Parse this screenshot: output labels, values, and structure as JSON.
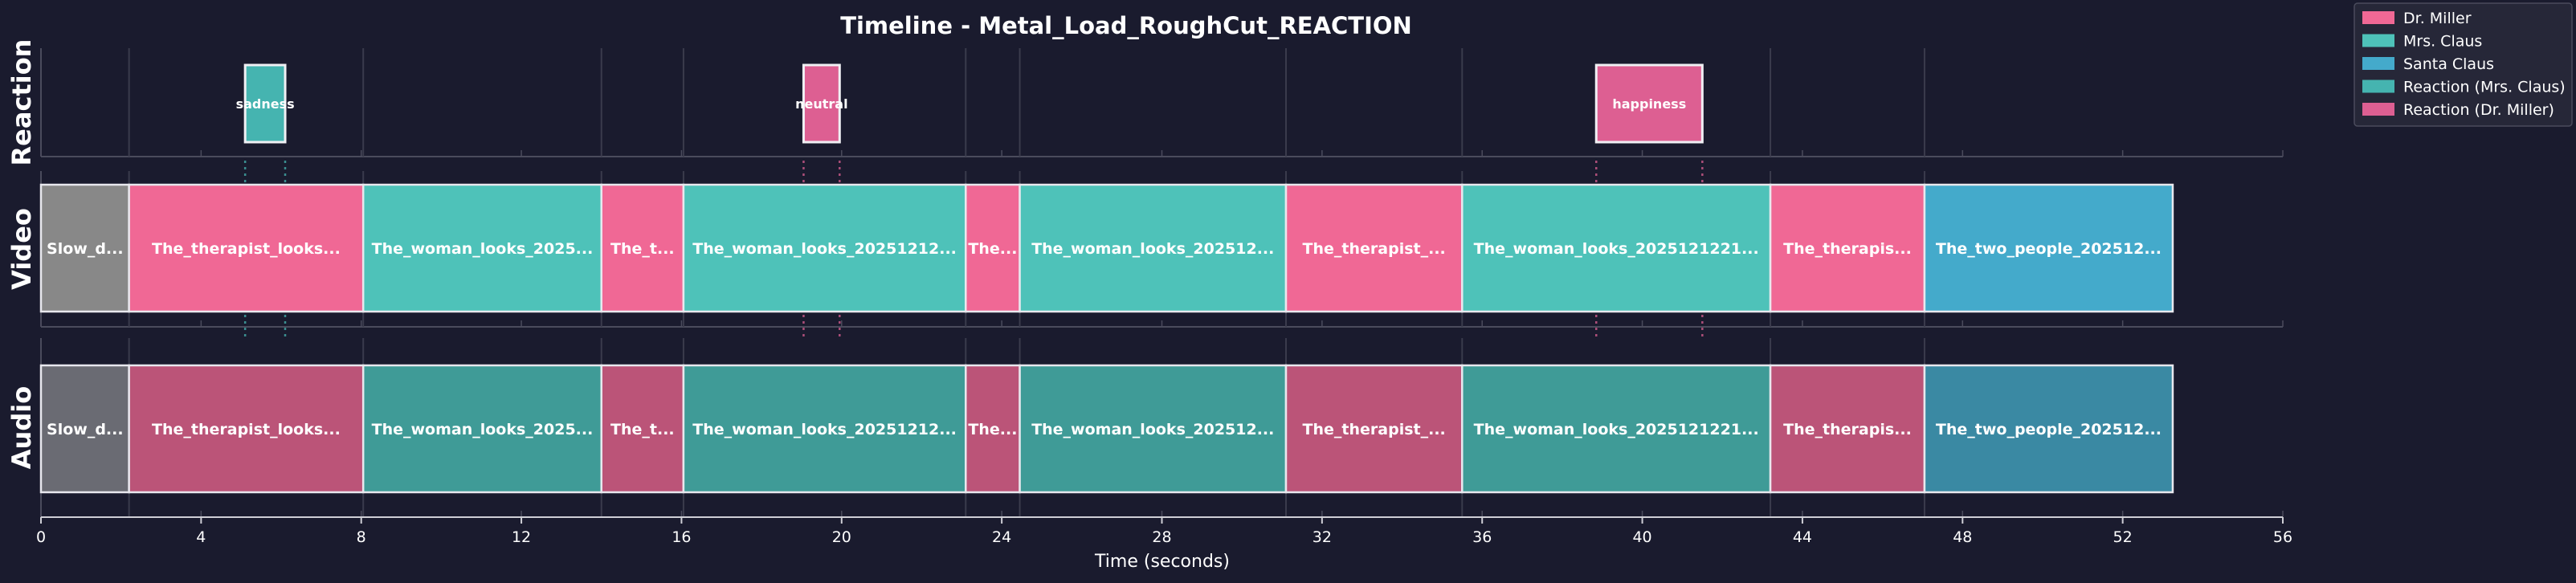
{
  "chart_data": {
    "type": "timeline",
    "title": "Timeline - Metal_Load_RoughCut_REACTION",
    "xlabel": "Time (seconds)",
    "xlim": [
      0,
      56
    ],
    "xticks": [
      0,
      4,
      8,
      12,
      16,
      20,
      24,
      28,
      32,
      36,
      40,
      44,
      48,
      52,
      56
    ],
    "tracks": [
      "Reaction",
      "Video",
      "Audio"
    ],
    "colors": {
      "Slow": "#888888",
      "Dr. Miller": "#f06895",
      "Mrs. Claus": "#4ec2b9",
      "Santa Claus": "#44aacb",
      "Reaction (Mrs. Claus)": "#45b4b0",
      "Reaction (Dr. Miller)": "#dd5f92"
    },
    "audio_colors": {
      "Slow": "#6a6b73",
      "Dr. Miller": "#bb5478",
      "Mrs. Claus": "#3f9b97",
      "Santa Claus": "#3a89a3"
    },
    "clips": [
      {
        "start": 0.0,
        "end": 2.2,
        "speaker": "Slow",
        "label": "Slow_d..."
      },
      {
        "start": 2.2,
        "end": 8.05,
        "speaker": "Dr. Miller",
        "label": "The_therapist_looks..."
      },
      {
        "start": 8.05,
        "end": 14.0,
        "speaker": "Mrs. Claus",
        "label": "The_woman_looks_2025..."
      },
      {
        "start": 14.0,
        "end": 16.05,
        "speaker": "Dr. Miller",
        "label": "The_t..."
      },
      {
        "start": 16.05,
        "end": 23.1,
        "speaker": "Mrs. Claus",
        "label": "The_woman_looks_20251212..."
      },
      {
        "start": 23.1,
        "end": 24.45,
        "speaker": "Dr. Miller",
        "label": "The..."
      },
      {
        "start": 24.45,
        "end": 31.1,
        "speaker": "Mrs. Claus",
        "label": "The_woman_looks_202512..."
      },
      {
        "start": 31.1,
        "end": 35.5,
        "speaker": "Dr. Miller",
        "label": "The_therapist_..."
      },
      {
        "start": 35.5,
        "end": 43.2,
        "speaker": "Mrs. Claus",
        "label": "The_woman_looks_2025121221..."
      },
      {
        "start": 43.2,
        "end": 47.05,
        "speaker": "Dr. Miller",
        "label": "The_therapis..."
      },
      {
        "start": 47.05,
        "end": 53.25,
        "speaker": "Santa Claus",
        "label": "The_two_people_202512..."
      }
    ],
    "reactions": [
      {
        "start": 5.1,
        "end": 6.1,
        "label": "sadness",
        "series": "Reaction (Mrs. Claus)"
      },
      {
        "start": 19.05,
        "end": 19.95,
        "label": "neutral",
        "series": "Reaction (Dr. Miller)"
      },
      {
        "start": 38.85,
        "end": 41.5,
        "label": "happiness",
        "series": "Reaction (Dr. Miller)"
      }
    ],
    "legend": {
      "position": "top-right",
      "entries": [
        "Dr. Miller",
        "Mrs. Claus",
        "Santa Claus",
        "Reaction (Mrs. Claus)",
        "Reaction (Dr. Miller)"
      ]
    }
  }
}
